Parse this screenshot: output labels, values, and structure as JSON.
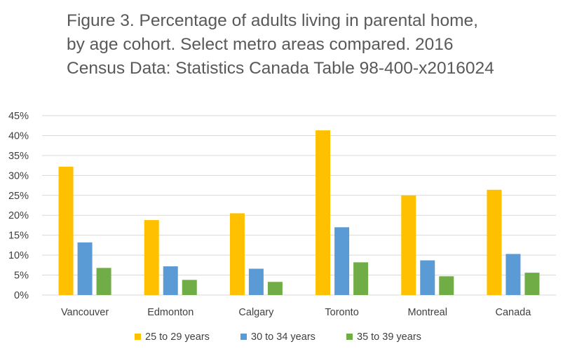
{
  "chart_data": {
    "type": "bar",
    "title_lines": [
      "Figure 3. Percentage of adults living in parental home,",
      "by age cohort. Select metro areas compared. 2016",
      "Census Data: Statistics Canada Table 98-400-x2016024"
    ],
    "categories": [
      "Vancouver",
      "Edmonton",
      "Calgary",
      "Toronto",
      "Montreal",
      "Canada"
    ],
    "series": [
      {
        "name": "25 to 29 years",
        "color": "#FFC000",
        "values": [
          32.2,
          18.8,
          20.5,
          41.3,
          25.0,
          26.4
        ]
      },
      {
        "name": "30 to 34 years",
        "color": "#5B9BD5",
        "values": [
          13.2,
          7.2,
          6.6,
          17.0,
          8.7,
          10.3
        ]
      },
      {
        "name": "35 to 39 years",
        "color": "#70AD47",
        "values": [
          6.8,
          3.8,
          3.3,
          8.2,
          4.7,
          5.6
        ]
      }
    ],
    "ylim": [
      0,
      45
    ],
    "y_ticks": [
      "0%",
      "5%",
      "10%",
      "15%",
      "20%",
      "25%",
      "30%",
      "35%",
      "40%",
      "45%"
    ],
    "xlabel": "",
    "ylabel": "",
    "grid": true,
    "legend_position": "bottom"
  }
}
